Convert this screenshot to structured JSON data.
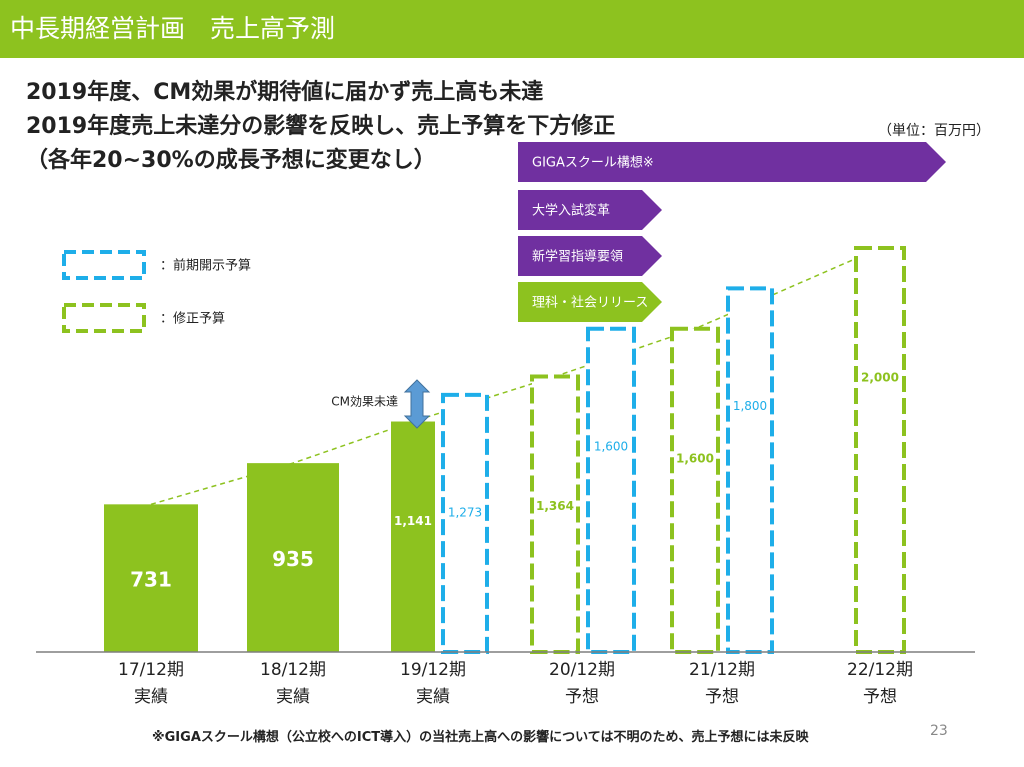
{
  "header": {
    "title": "中長期経営計画　売上高予測"
  },
  "headline": {
    "line1": "2019年度、CM効果が期待値に届かず売上高も未達",
    "line2": "2019年度売上未達分の影響を反映し、売上予算を下方修正",
    "line3": "（各年20~30%の成長予想に変更なし）"
  },
  "unit_label": "（単位：百万円）",
  "legend": {
    "prior": "：前期開示予算",
    "revised": "：修正予算"
  },
  "initiatives": [
    "GIGAスクール構想※",
    "大学入試変革",
    "新学習指導要領",
    "理科・社会リリース"
  ],
  "cm_label": "CM効果未達",
  "footnote": "※GIGAスクール構想（公立校へのICT導入）の当社売上高への影響については不明のため、売上予想には未反映",
  "page_number": "23",
  "colors": {
    "green": "#8dc21f",
    "blue": "#1eaee9",
    "purple": "#7030a0",
    "arrow": "#5b9bd5"
  },
  "chart_data": {
    "type": "bar",
    "categories": [
      "17/12期\n実績",
      "18/12期\n実績",
      "19/12期\n実績",
      "20/12期\n予想",
      "21/12期\n予想",
      "22/12期\n予想"
    ],
    "category_lines": [
      [
        "17/12期",
        "実績"
      ],
      [
        "18/12期",
        "実績"
      ],
      [
        "19/12期",
        "実績"
      ],
      [
        "20/12期",
        "予想"
      ],
      [
        "21/12期",
        "予想"
      ],
      [
        "22/12期",
        "予想"
      ]
    ],
    "series": [
      {
        "name": "実績",
        "values": [
          731,
          935,
          1141,
          null,
          null,
          null
        ],
        "labels": [
          "731",
          "935",
          "1,141",
          null,
          null,
          null
        ]
      },
      {
        "name": "前期開示予算",
        "values": [
          null,
          null,
          1273,
          1600,
          1800,
          null
        ],
        "labels": [
          null,
          null,
          "1,273",
          "1,600",
          "1,800",
          null
        ]
      },
      {
        "name": "修正予算",
        "values": [
          null,
          null,
          null,
          1364,
          1600,
          2000
        ],
        "labels": [
          null,
          null,
          null,
          "1,364",
          "1,600",
          "2,000"
        ]
      }
    ],
    "ylim": [
      0,
      2000
    ],
    "grid": false,
    "legend_position": "left"
  }
}
